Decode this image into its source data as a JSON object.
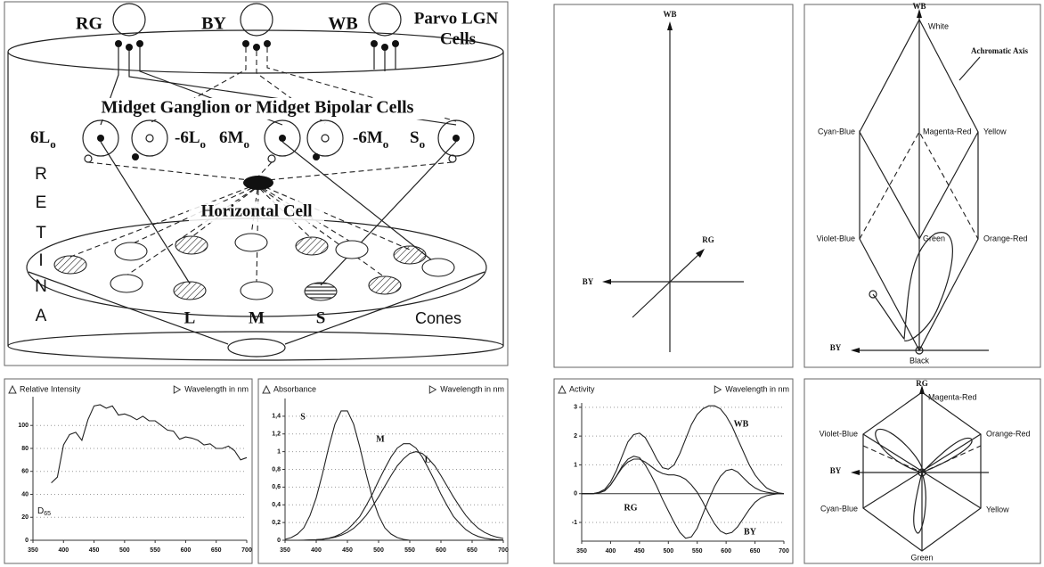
{
  "retina_diagram": {
    "lgn_cells": [
      "RG",
      "BY",
      "WB"
    ],
    "lgn_title": [
      "Parvo LGN",
      "Cells"
    ],
    "midget_title": "Midget Ganglion or Midget Bipolar Cells",
    "midget_cells": [
      {
        "label": "6L",
        "subscript": "o"
      },
      {
        "label": "-6L",
        "subscript": "o"
      },
      {
        "label": "6M",
        "subscript": "o"
      },
      {
        "label": "-6M",
        "subscript": "o"
      },
      {
        "label": "S",
        "subscript": "o"
      }
    ],
    "horizontal_cell": "Horizontal Cell",
    "side_label": [
      "R",
      "E",
      "T",
      "I",
      "N",
      "A"
    ],
    "cone_labels": [
      "L",
      "M",
      "S"
    ],
    "cones_title": "Cones"
  },
  "chart_data": [
    {
      "type": "line",
      "y_label": "Relative Intensity",
      "x_label": "Wavelength in nm",
      "x": [
        380,
        390,
        400,
        410,
        420,
        430,
        440,
        450,
        460,
        470,
        480,
        490,
        500,
        510,
        520,
        530,
        540,
        550,
        560,
        570,
        580,
        590,
        600,
        610,
        620,
        630,
        640,
        650,
        660,
        670,
        680,
        690,
        700
      ],
      "series": [
        {
          "color": "#222222",
          "values": [
            50,
            55,
            83,
            92,
            94,
            87,
            105,
            117,
            118,
            115,
            117,
            109,
            110,
            108,
            105,
            108,
            104,
            104,
            100,
            96,
            95,
            88,
            90,
            89,
            87,
            83,
            84,
            80,
            80,
            82,
            78,
            70,
            72
          ]
        }
      ],
      "annotation": {
        "text": "D",
        "subscript": "65"
      },
      "xlim": [
        350,
        700
      ],
      "xticks": [
        350,
        400,
        450,
        500,
        550,
        600,
        650,
        700
      ],
      "ylim": [
        0,
        125
      ],
      "yticks": [
        0,
        20,
        40,
        60,
        80,
        100
      ],
      "grid": true
    },
    {
      "type": "line",
      "y_label": "Absorbance",
      "x_label": "Wavelength in nm",
      "x": [
        350,
        360,
        370,
        380,
        390,
        400,
        410,
        420,
        430,
        440,
        450,
        460,
        470,
        480,
        490,
        500,
        510,
        520,
        530,
        540,
        550,
        560,
        570,
        580,
        590,
        600,
        610,
        620,
        630,
        640,
        650,
        660,
        670,
        680,
        690,
        700
      ],
      "series": [
        {
          "name": "S",
          "color": "#222222",
          "values": [
            0.01,
            0.03,
            0.07,
            0.14,
            0.28,
            0.48,
            0.75,
            1.05,
            1.31,
            1.46,
            1.46,
            1.31,
            1.05,
            0.75,
            0.48,
            0.28,
            0.14,
            0.07,
            0.03,
            0.01,
            0,
            0,
            0,
            0,
            0,
            0,
            0,
            0,
            0,
            0,
            0,
            0,
            0,
            0,
            0,
            0
          ]
        },
        {
          "name": "M",
          "color": "#222222",
          "values": [
            0,
            0,
            0,
            0,
            0.003,
            0.006,
            0.012,
            0.023,
            0.042,
            0.073,
            0.12,
            0.19,
            0.27,
            0.39,
            0.52,
            0.67,
            0.81,
            0.94,
            1.04,
            1.09,
            1.09,
            1.04,
            0.94,
            0.81,
            0.67,
            0.52,
            0.39,
            0.27,
            0.19,
            0.12,
            0.073,
            0.042,
            0.023,
            0.012,
            0.006,
            0.003
          ]
        },
        {
          "name": "L",
          "color": "#222222",
          "values": [
            0,
            0,
            0,
            0.001,
            0.003,
            0.006,
            0.011,
            0.02,
            0.034,
            0.056,
            0.089,
            0.135,
            0.2,
            0.28,
            0.38,
            0.49,
            0.61,
            0.73,
            0.84,
            0.92,
            0.98,
            1.0,
            0.98,
            0.92,
            0.84,
            0.73,
            0.61,
            0.49,
            0.38,
            0.28,
            0.2,
            0.135,
            0.089,
            0.056,
            0.034,
            0.02
          ]
        }
      ],
      "xlim": [
        350,
        700
      ],
      "xticks": [
        350,
        400,
        450,
        500,
        550,
        600,
        650,
        700
      ],
      "ylim": [
        0,
        1.6
      ],
      "yticks": [
        0,
        {
          "value": 0.2,
          "label": "0,2"
        },
        {
          "value": 0.4,
          "label": "0,4"
        },
        {
          "value": 0.6,
          "label": "0,6"
        },
        {
          "value": 0.8,
          "label": "0,8"
        },
        1,
        {
          "value": 1.2,
          "label": "1,2"
        },
        {
          "value": 1.4,
          "label": "1,4"
        }
      ],
      "grid": true
    },
    {
      "type": "line",
      "y_label": "Activity",
      "x_label": "Wavelength in nm",
      "x": [
        350,
        360,
        370,
        380,
        390,
        400,
        410,
        420,
        430,
        440,
        450,
        460,
        470,
        480,
        490,
        500,
        510,
        520,
        530,
        540,
        550,
        560,
        570,
        580,
        590,
        600,
        610,
        620,
        630,
        640,
        650,
        660,
        670,
        680,
        690,
        700
      ],
      "series": [
        {
          "name": "WB",
          "color": "#222222",
          "values": [
            0,
            0,
            0,
            0.05,
            0.15,
            0.4,
            0.8,
            1.3,
            1.8,
            2.05,
            2.1,
            1.95,
            1.6,
            1.2,
            0.9,
            0.85,
            1.0,
            1.4,
            1.9,
            2.4,
            2.75,
            2.95,
            3.05,
            3.05,
            2.95,
            2.7,
            2.35,
            1.9,
            1.45,
            1.0,
            0.65,
            0.4,
            0.2,
            0.1,
            0.03,
            0
          ]
        },
        {
          "name": "RG",
          "color": "#222222",
          "values": [
            0,
            0,
            0,
            0.03,
            0.1,
            0.3,
            0.6,
            0.95,
            1.2,
            1.3,
            1.25,
            1.0,
            0.65,
            0.25,
            -0.2,
            -0.6,
            -1.0,
            -1.35,
            -1.55,
            -1.5,
            -1.2,
            -0.7,
            -0.2,
            0.25,
            0.6,
            0.8,
            0.85,
            0.75,
            0.55,
            0.35,
            0.2,
            0.1,
            0.05,
            0.02,
            0,
            0
          ]
        },
        {
          "name": "BY",
          "color": "#222222",
          "values": [
            0,
            0,
            0,
            0.03,
            0.1,
            0.3,
            0.6,
            0.9,
            1.1,
            1.2,
            1.2,
            1.1,
            0.95,
            0.8,
            0.7,
            0.65,
            0.65,
            0.6,
            0.5,
            0.3,
            0.05,
            -0.3,
            -0.7,
            -1.05,
            -1.3,
            -1.4,
            -1.35,
            -1.15,
            -0.85,
            -0.55,
            -0.3,
            -0.15,
            -0.07,
            -0.03,
            0,
            0
          ]
        }
      ],
      "xlim": [
        350,
        700
      ],
      "xticks": [
        350,
        400,
        450,
        500,
        550,
        600,
        650,
        700
      ],
      "ylim": [
        -1.65,
        3.15
      ],
      "yticks": [
        -1,
        0,
        1,
        2,
        3
      ],
      "grid": true
    }
  ],
  "color_space_axes": {
    "axes": [
      "WB",
      "RG",
      "BY"
    ]
  },
  "color_solid": {
    "axis_top": "WB",
    "top": "White",
    "achromatic_axis": "Achromatic Axis",
    "upper": [
      "Cyan-Blue",
      "Magenta-Red",
      "Yellow"
    ],
    "lower": [
      "Violet-Blue",
      "Green",
      "Orange-Red"
    ],
    "axis_left": "BY",
    "bottom": "Black"
  },
  "hue_plane": {
    "axis_top": "RG",
    "labels": [
      "Magenta-Red",
      "Violet-Blue",
      "Orange-Red",
      "Cyan-Blue",
      "Yellow",
      "Green"
    ],
    "axis_left": "BY"
  }
}
